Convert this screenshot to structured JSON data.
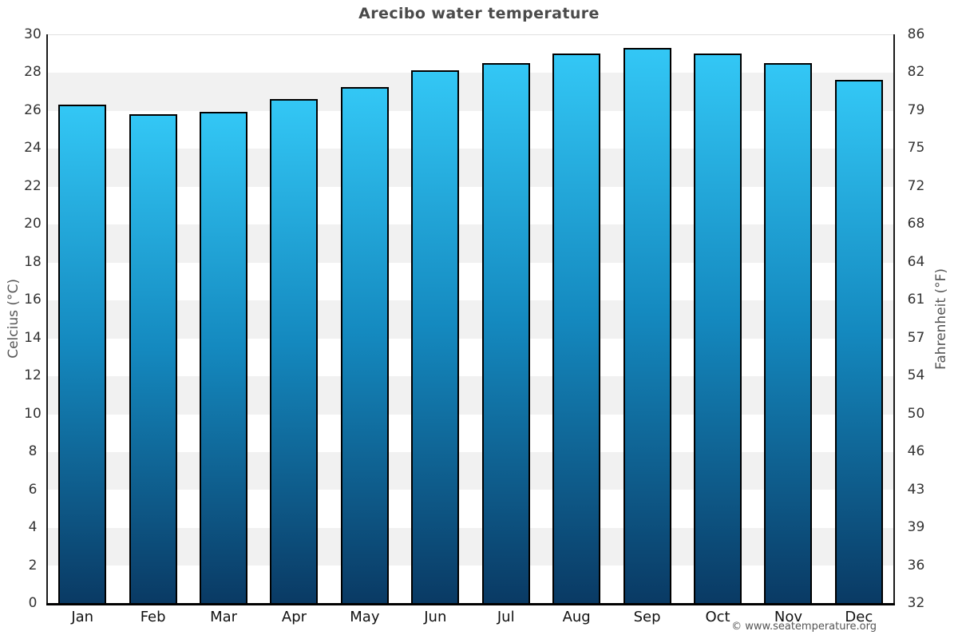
{
  "chart_data": {
    "type": "bar",
    "title": "Arecibo water temperature",
    "categories": [
      "Jan",
      "Feb",
      "Mar",
      "Apr",
      "May",
      "Jun",
      "Jul",
      "Aug",
      "Sep",
      "Oct",
      "Nov",
      "Dec"
    ],
    "values": [
      26.3,
      25.8,
      25.9,
      26.6,
      27.2,
      28.1,
      28.5,
      29.0,
      29.3,
      29.0,
      28.5,
      27.6
    ],
    "ylabel": "Celcius (°C)",
    "ylabel_right": "Fahrenheit (°F)",
    "yticks": [
      30,
      28,
      26,
      24,
      22,
      20,
      18,
      16,
      14,
      12,
      10,
      8,
      6,
      4,
      2,
      0
    ],
    "yticks_right": [
      86,
      82,
      79,
      75,
      72,
      68,
      64,
      61,
      57,
      54,
      50,
      46,
      43,
      39,
      36,
      32
    ],
    "ylim": [
      0,
      30
    ],
    "grid": "banded-horizontal",
    "legend_position": "none",
    "colors": {
      "bar_top": "#33c7f5",
      "bar_mid": "#1489bf",
      "bar_bottom": "#0a3a64",
      "bar_border": "#000000",
      "band_light": "#ffffff",
      "band_dark": "#f1f1f1",
      "axis_line": "#1a1a1a",
      "baseline": "#000000"
    }
  },
  "footer": {
    "credit": "© www.seatemperature.org"
  }
}
